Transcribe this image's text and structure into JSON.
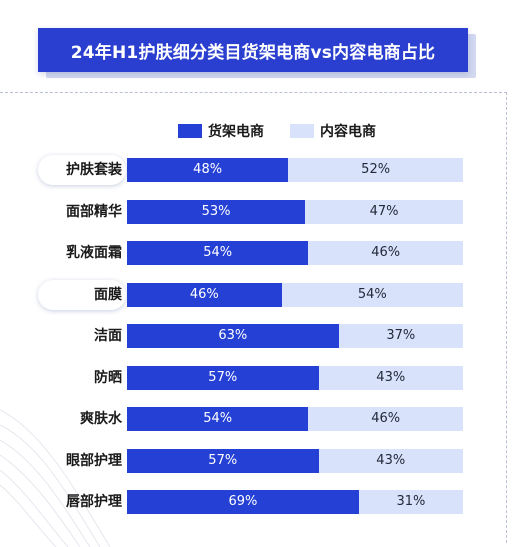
{
  "header": {
    "title": "24年H1护肤细分类目货架电商vs内容电商占比"
  },
  "chart_data": {
    "type": "bar",
    "orientation": "horizontal",
    "stacked": "percent",
    "title": "24年H1护肤细分类目货架电商vs内容电商占比",
    "categories": [
      "护肤套装",
      "面部精华",
      "乳液面霜",
      "面膜",
      "洁面",
      "防晒",
      "爽肤水",
      "眼部护理",
      "唇部护理"
    ],
    "series": [
      {
        "name": "货架电商",
        "color": "#2540d4",
        "values": [
          48,
          53,
          54,
          46,
          63,
          57,
          54,
          57,
          69
        ]
      },
      {
        "name": "内容电商",
        "color": "#d9e2fb",
        "values": [
          52,
          47,
          46,
          54,
          37,
          43,
          46,
          43,
          31
        ]
      }
    ],
    "data_label_format": "{v}%",
    "highlighted_categories": [
      "护肤套装",
      "面膜"
    ],
    "legend_position": "top",
    "grid": false
  }
}
